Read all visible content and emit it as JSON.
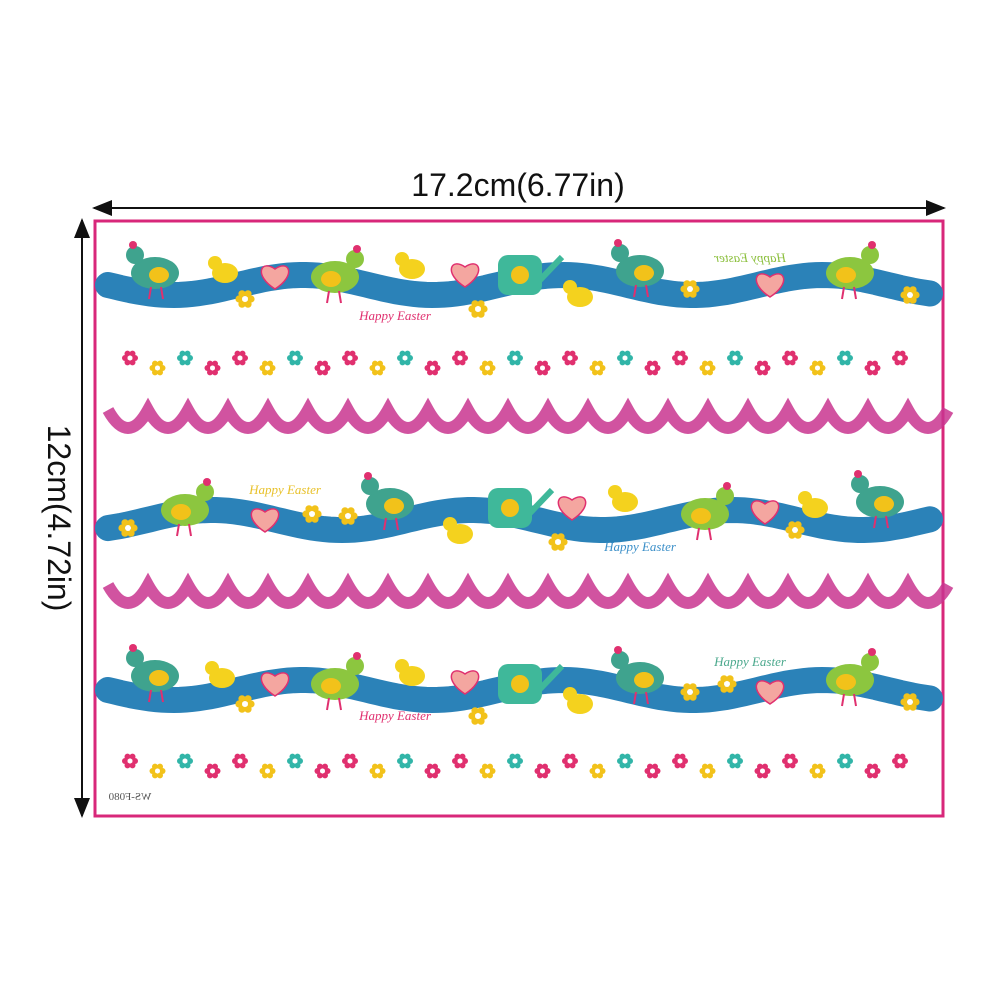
{
  "dimensions": {
    "width": "17.2cm(6.77in)",
    "height": "12cm(4.72in)"
  },
  "sheet": {
    "code": "WS-F080",
    "greetings": [
      "Happy Easter",
      "Happy Easter",
      "Happy Easter",
      "Happy Easter",
      "Happy Easter",
      "Happy Easter"
    ]
  }
}
